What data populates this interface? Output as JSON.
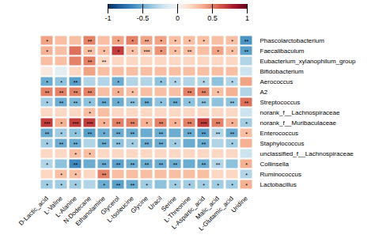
{
  "chart_data": {
    "type": "heatmap",
    "rows": [
      "Phascolarctobacterium",
      "Faecalibaculum",
      "Eubacterium_xylanophilum_group",
      "Bifidobacterium",
      "Aerococcus",
      "A2",
      "Streptococcus",
      "norank_f__Lachnospiraceae",
      "norank_f__Muribaculaceae",
      "Enterococcus",
      "Staphylococcus",
      "unclassified_f__Lachnospiraceae",
      "Collinsella",
      "Ruminococcus",
      "Lactobacillus"
    ],
    "cols": [
      "D-Lactic_acid",
      "L-Valine",
      "L-Alanine",
      "N-Dodecane",
      "Ethanolamine",
      "Glycerol",
      "L-Isoleucine",
      "Glycine",
      "Uracil",
      "Serine",
      "L-Threonine",
      "L-Aspartic_acid",
      "Malic_acid",
      "L-Glutamic_acid",
      "Uridine"
    ],
    "values": [
      [
        0.4,
        0.3,
        0.3,
        0.5,
        0.3,
        0.4,
        0.5,
        0.4,
        0.4,
        0.3,
        0.3,
        0.3,
        0.3,
        0.3,
        -0.6
      ],
      [
        0.35,
        0.3,
        0.55,
        0.3,
        0.3,
        0.7,
        0.3,
        0.3,
        0.45,
        0.3,
        0.3,
        0.3,
        0.4,
        0.3,
        -0.55
      ],
      [
        0.3,
        0.3,
        0.5,
        0.5,
        0.2,
        0.2,
        0.2,
        0.2,
        0.2,
        0.2,
        0.2,
        0.2,
        0.2,
        0.2,
        -0.3
      ],
      [
        0.1,
        -0.1,
        0.2,
        0.4,
        0.3,
        0.3,
        0.3,
        0.3,
        0.3,
        0.3,
        0.3,
        0.3,
        0.3,
        0.3,
        -0.2
      ],
      [
        -0.5,
        -0.4,
        -0.55,
        -0.3,
        -0.3,
        -0.5,
        -0.3,
        -0.3,
        -0.4,
        -0.3,
        -0.3,
        -0.3,
        -0.4,
        -0.3,
        0.4
      ],
      [
        0.5,
        0.5,
        0.5,
        0.5,
        0.3,
        0.35,
        0.3,
        0.3,
        0.3,
        0.3,
        0.5,
        0.5,
        0.3,
        0.35,
        -0.3
      ],
      [
        -0.35,
        -0.5,
        -0.45,
        -0.4,
        -0.5,
        -0.5,
        -0.4,
        -0.5,
        -0.4,
        -0.5,
        -0.4,
        -0.4,
        -0.4,
        -0.4,
        0.55
      ],
      [
        0.2,
        0.2,
        0.2,
        0.3,
        0.3,
        0.2,
        0.2,
        0.2,
        0.2,
        0.2,
        0.2,
        0.2,
        0.2,
        0.2,
        -0.2
      ],
      [
        0.7,
        0.35,
        0.7,
        0.7,
        0.35,
        0.5,
        0.5,
        0.35,
        0.5,
        0.35,
        0.5,
        0.7,
        0.5,
        0.35,
        -0.35
      ],
      [
        -0.5,
        -0.35,
        -0.4,
        -0.55,
        -0.5,
        -0.5,
        -0.5,
        -0.5,
        -0.5,
        -0.5,
        -0.5,
        -0.55,
        -0.3,
        -0.5,
        0.3
      ],
      [
        -0.35,
        -0.5,
        -0.5,
        -0.3,
        -0.5,
        -0.4,
        -0.35,
        -0.5,
        -0.5,
        -0.35,
        -0.5,
        -0.5,
        -0.3,
        -0.35,
        0.35
      ],
      [
        0.2,
        0.2,
        0.3,
        0.3,
        0.2,
        0.2,
        0.2,
        0.2,
        0.2,
        0.2,
        0.2,
        0.2,
        0.2,
        0.2,
        -0.2
      ],
      [
        -0.3,
        -0.4,
        -0.65,
        -0.5,
        -0.5,
        -0.55,
        -0.5,
        -0.5,
        -0.5,
        -0.5,
        -0.5,
        -0.5,
        -0.3,
        -0.4,
        0.35
      ],
      [
        0.2,
        0.3,
        0.3,
        0.2,
        0.5,
        0.3,
        0.3,
        0.3,
        0.3,
        0.3,
        0.3,
        0.3,
        0.2,
        0.2,
        -0.3
      ],
      [
        -0.35,
        -0.35,
        -0.35,
        -0.3,
        -0.5,
        -0.55,
        -0.5,
        -0.35,
        -0.4,
        -0.35,
        -0.35,
        -0.35,
        -0.35,
        -0.35,
        0.35
      ]
    ],
    "stars": [
      [
        "*",
        null,
        null,
        "**",
        null,
        "*",
        "*",
        "**",
        "*",
        "*",
        "*",
        "*",
        null,
        "*",
        "**"
      ],
      [
        "*",
        null,
        null,
        "**",
        "*",
        "*",
        "*",
        "***",
        "*",
        "*",
        "**",
        null,
        "*",
        "*",
        "**"
      ],
      [
        null,
        null,
        null,
        "**",
        "**",
        null,
        null,
        null,
        null,
        null,
        null,
        null,
        null,
        null,
        null
      ],
      [
        null,
        null,
        null,
        null,
        null,
        null,
        null,
        null,
        null,
        null,
        null,
        null,
        null,
        null,
        null
      ],
      [
        "*",
        "*",
        "**",
        null,
        null,
        "*",
        null,
        null,
        "*",
        "*",
        null,
        "*",
        null,
        "*",
        null
      ],
      [
        "**",
        "**",
        "**",
        "**",
        null,
        "*",
        "*",
        null,
        null,
        null,
        "**",
        "**",
        "*",
        null,
        null
      ],
      [
        "*",
        "**",
        "**",
        "*",
        "**",
        "*",
        "**",
        "**",
        "*",
        "**",
        "*",
        "**",
        null,
        "**",
        "**"
      ],
      [
        null,
        null,
        null,
        "*",
        null,
        null,
        null,
        null,
        null,
        null,
        null,
        null,
        null,
        null,
        null
      ],
      [
        "***",
        "*",
        "***",
        "***",
        "*",
        "**",
        "**",
        "*",
        "**",
        "*",
        "**",
        "***",
        "**",
        "*",
        "*"
      ],
      [
        "**",
        "*",
        "*",
        "**",
        "*",
        "**",
        "**",
        null,
        "**",
        null,
        "**",
        "**",
        "**",
        "**",
        "*"
      ],
      [
        "*",
        "**",
        "**",
        null,
        "**",
        "**",
        "*",
        "**",
        "**",
        "*",
        null,
        "**",
        null,
        "*",
        null
      ],
      [
        null,
        null,
        "*",
        "*",
        null,
        null,
        null,
        null,
        null,
        null,
        null,
        null,
        null,
        null,
        null
      ],
      [
        "*",
        null,
        "**",
        null,
        "**",
        "**",
        "**",
        "**",
        "**",
        "**",
        null,
        "**",
        "**",
        null,
        "*"
      ],
      [
        null,
        "*",
        "*",
        null,
        "**",
        null,
        null,
        null,
        null,
        null,
        null,
        null,
        null,
        null,
        "*"
      ],
      [
        "*",
        "*",
        "*",
        null,
        "*",
        "**",
        "**",
        "*",
        null,
        "*",
        "*",
        "*",
        "*",
        "*",
        "*"
      ]
    ],
    "colorbar_lim": [
      -1,
      1
    ],
    "colorbar_ticks": [
      1,
      0.5,
      0,
      -0.5,
      -1
    ]
  }
}
